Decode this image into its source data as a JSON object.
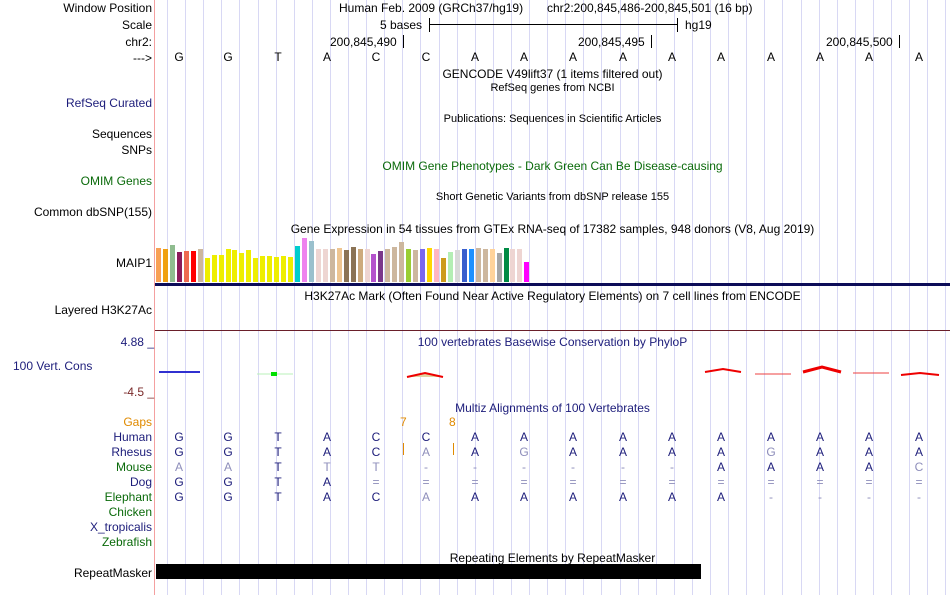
{
  "header": {
    "labels": {
      "window_position": "Window Position",
      "scale": "Scale",
      "chrom": "chr2:",
      "strand": "--->"
    },
    "assembly": "Human Feb. 2009 (GRCh37/hg19)",
    "position": "chr2:200,845,486-200,845,501 (16 bp)",
    "scale_text": "5 bases",
    "scale_db": "hg19",
    "coordinates": [
      "200,845,490",
      "200,845,495",
      "200,845,500"
    ],
    "sequence": [
      "G",
      "G",
      "T",
      "A",
      "C",
      "C",
      "A",
      "A",
      "A",
      "A",
      "A",
      "A",
      "A",
      "A",
      "A",
      "A"
    ]
  },
  "tracks": {
    "gencode": {
      "title": "GENCODE V49lift37 (1 items filtered out)"
    },
    "refseq": {
      "label": "RefSeq Curated",
      "title": "RefSeq genes from NCBI"
    },
    "publications": {
      "label1": "Sequences",
      "label2": "SNPs",
      "title": "Publications: Sequences in Scientific Articles"
    },
    "omim": {
      "label": "OMIM Genes",
      "title": "OMIM Gene Phenotypes - Dark Green Can Be Disease-causing"
    },
    "dbsnp": {
      "label": "Common dbSNP(155)",
      "title": "Short Genetic Variants from dbSNP release 155"
    },
    "gtex": {
      "label": "MAIP1",
      "title": "Gene Expression in 54 tissues from GTEx RNA-seq of 17382 samples, 948 donors (V8, Aug 2019)",
      "bars": [
        {
          "color": "#f8a055",
          "value": 0.78
        },
        {
          "color": "#f0a010",
          "value": 0.76
        },
        {
          "color": "#8fbc8f",
          "value": 0.85
        },
        {
          "color": "#8b1a5a",
          "value": 0.68
        },
        {
          "color": "#ee6a50",
          "value": 0.7
        },
        {
          "color": "#ff0000",
          "value": 0.7
        },
        {
          "color": "#cdb79e",
          "value": 0.76
        },
        {
          "color": "#eeee00",
          "value": 0.55
        },
        {
          "color": "#eeee00",
          "value": 0.62
        },
        {
          "color": "#eeee00",
          "value": 0.62
        },
        {
          "color": "#eeee00",
          "value": 0.76
        },
        {
          "color": "#eeee00",
          "value": 0.72
        },
        {
          "color": "#eeee00",
          "value": 0.66
        },
        {
          "color": "#eeee00",
          "value": 0.72
        },
        {
          "color": "#eeee00",
          "value": 0.55
        },
        {
          "color": "#eeee00",
          "value": 0.6
        },
        {
          "color": "#eeee00",
          "value": 0.6
        },
        {
          "color": "#eeee00",
          "value": 0.56
        },
        {
          "color": "#eeee00",
          "value": 0.6
        },
        {
          "color": "#eeee00",
          "value": 0.57
        },
        {
          "color": "#00cdcd",
          "value": 0.82
        },
        {
          "color": "#ee82ee",
          "value": 1.0
        },
        {
          "color": "#9ac0cd",
          "value": 0.93
        },
        {
          "color": "#eed5d2",
          "value": 0.74
        },
        {
          "color": "#eed5d2",
          "value": 0.76
        },
        {
          "color": "#cdb79e",
          "value": 0.74
        },
        {
          "color": "#eec591",
          "value": 0.78
        },
        {
          "color": "#8b7355",
          "value": 0.72
        },
        {
          "color": "#8b7355",
          "value": 0.8
        },
        {
          "color": "#cdaa7d",
          "value": 0.74
        },
        {
          "color": "#eed5d2",
          "value": 0.76
        },
        {
          "color": "#b452cd",
          "value": 0.64
        },
        {
          "color": "#7a378b",
          "value": 0.7
        },
        {
          "color": "#cdb79e",
          "value": 0.76
        },
        {
          "color": "#cdb79e",
          "value": 0.8
        },
        {
          "color": "#cdb79e",
          "value": 0.9
        },
        {
          "color": "#9acd32",
          "value": 0.74
        },
        {
          "color": "#cdb79e",
          "value": 0.72
        },
        {
          "color": "#7b68ee",
          "value": 0.74
        },
        {
          "color": "#ffd700",
          "value": 0.78
        },
        {
          "color": "#ffb6c1",
          "value": 0.74
        },
        {
          "color": "#cd9b1d",
          "value": 0.55
        },
        {
          "color": "#b4eeb4",
          "value": 0.68
        },
        {
          "color": "#d9d9d9",
          "value": 0.72
        },
        {
          "color": "#3a5fcd",
          "value": 0.76
        },
        {
          "color": "#1e90ff",
          "value": 0.76
        },
        {
          "color": "#cdb79e",
          "value": 0.78
        },
        {
          "color": "#cdb79e",
          "value": 0.74
        },
        {
          "color": "#ffd39b",
          "value": 0.76
        },
        {
          "color": "#a6a6a6",
          "value": 0.66
        },
        {
          "color": "#008b45",
          "value": 0.78
        },
        {
          "color": "#eed5d2",
          "value": 0.76
        },
        {
          "color": "#eed5d2",
          "value": 0.76
        },
        {
          "color": "#ff00ff",
          "value": 0.45
        }
      ]
    },
    "h3k27ac": {
      "label": "Layered H3K27Ac",
      "title": "H3K27Ac Mark (Often Found Near Active Regulatory Elements) on 7 cell lines from ENCODE"
    },
    "phylop": {
      "label": "100 Vert. Cons",
      "title": "100 vertebrates Basewise Conservation by PhyloP",
      "max": "4.88 _",
      "min": "-4.5 _"
    },
    "multiz": {
      "title": "Multiz Alignments of 100 Vertebrates",
      "gaps_label": "Gaps",
      "gap_marks": [
        "7",
        "8"
      ],
      "species": [
        {
          "name": "Human",
          "color": "navy",
          "seq": [
            "G",
            "G",
            "T",
            "A",
            "C",
            "C",
            "A",
            "A",
            "A",
            "A",
            "A",
            "A",
            "A",
            "A",
            "A",
            "A"
          ]
        },
        {
          "name": "Rhesus",
          "color": "navy",
          "seq": [
            "G",
            "G",
            "T",
            "A",
            "C",
            "A",
            "A",
            "G",
            "A",
            "A",
            "A",
            "A",
            "G",
            "A",
            "A",
            "A"
          ]
        },
        {
          "name": "Mouse",
          "color": "green",
          "seq": [
            "A",
            "A",
            "T",
            "T",
            "T",
            "-",
            "-",
            "-",
            "-",
            "-",
            "-",
            "A",
            "A",
            "A",
            "A",
            "C"
          ]
        },
        {
          "name": "Dog",
          "color": "navy",
          "seq": [
            "G",
            "G",
            "T",
            "A",
            "=",
            "=",
            "=",
            "=",
            "=",
            "=",
            "=",
            "=",
            "=",
            "=",
            "=",
            "="
          ]
        },
        {
          "name": "Elephant",
          "color": "green",
          "seq": [
            "G",
            "G",
            "T",
            "A",
            "C",
            "A",
            "A",
            "A",
            "A",
            "A",
            "A",
            "A",
            "-",
            "-",
            "-",
            "-"
          ]
        },
        {
          "name": "Chicken",
          "color": "green",
          "seq": []
        },
        {
          "name": "X_tropicalis",
          "color": "navy",
          "seq": []
        },
        {
          "name": "Zebrafish",
          "color": "green",
          "seq": []
        }
      ]
    },
    "repeatmasker": {
      "label": "RepeatMasker",
      "title": "Repeating Elements by RepeatMasker"
    }
  }
}
